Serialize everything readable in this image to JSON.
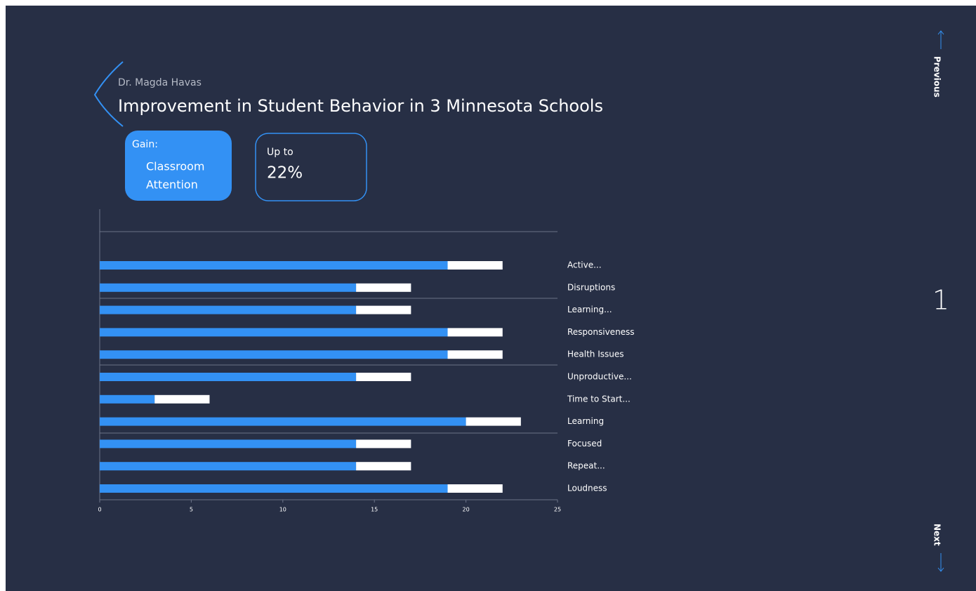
{
  "header": {
    "author": "Dr. Magda Havas",
    "title": "Improvement in Student Behavior in 3 Minnesota Schools"
  },
  "cards": {
    "gain": {
      "label": "Gain:",
      "lines": [
        "Classroom",
        "Attention"
      ]
    },
    "amount": {
      "label": "Up to",
      "value": "22%"
    }
  },
  "nav": {
    "previous": "Previous",
    "page": "1",
    "next": "Next"
  },
  "chart_data": {
    "type": "stacked-barh",
    "categories": [
      "Active...",
      "Disruptions",
      "Learning...",
      "Responsiveness",
      "Health Issues",
      "Unproductive...",
      "Time to Start...",
      "Learning",
      "Focused",
      "Repeat...",
      "Loudness"
    ],
    "series": [
      {
        "color": "#3391f4",
        "values": [
          19,
          14,
          14,
          19,
          19,
          14,
          3,
          20,
          14,
          14,
          19
        ]
      },
      {
        "color": "#ffffff",
        "values": [
          3,
          3,
          3,
          3,
          3,
          3,
          3,
          3,
          3,
          3,
          3
        ]
      }
    ],
    "xlim": [
      0,
      25
    ],
    "xticks": [
      0,
      5,
      10,
      15,
      20,
      25
    ]
  }
}
